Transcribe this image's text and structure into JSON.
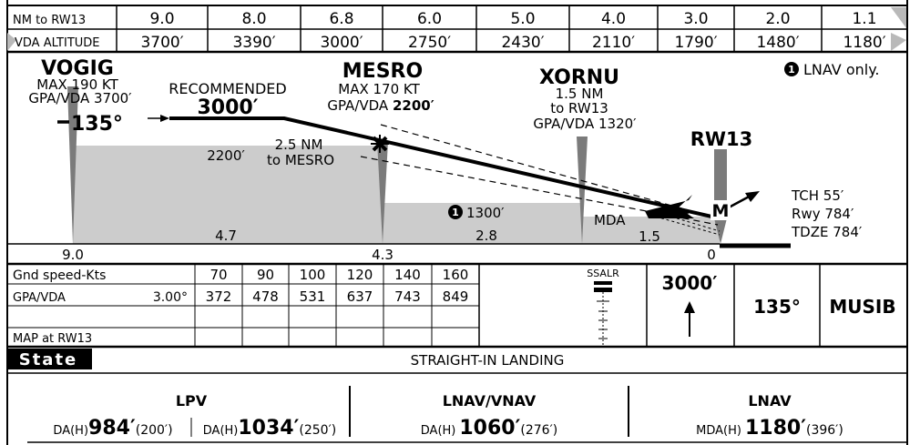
{
  "distance_table": {
    "row_label": "NM to RW13",
    "values": [
      "9.0",
      "8.0",
      "6.8",
      "6.0",
      "5.0",
      "4.0",
      "3.0",
      "2.0",
      "1.1"
    ]
  },
  "vda_table": {
    "row_label": "VDA ALTITUDE",
    "values": [
      "3700′",
      "3390′",
      "3000′",
      "2750′",
      "2430′",
      "2110′",
      "1790′",
      "1480′",
      "1180′"
    ]
  },
  "profile": {
    "fixes": {
      "vogig": {
        "name": "VOGIG",
        "lines": [
          "MAX 190 KT",
          "GPA/VDA 3700′"
        ]
      },
      "mesro": {
        "name": "MESRO",
        "line1": "MAX 170 KT",
        "line2_prefix": "GPA/VDA ",
        "line2_value": "2200′"
      },
      "xornu": {
        "name": "XORNU",
        "lines": [
          "1.5 NM",
          "to RW13",
          "GPA/VDA 1320′"
        ]
      }
    },
    "course": "135°",
    "recommended": {
      "label": "RECOMMENDED",
      "value": "3000′"
    },
    "minimum_altitude": "2200′",
    "segment_note": [
      "2.5 NM",
      "to MESRO"
    ],
    "step_altitude": "1300′",
    "note_badge": "1",
    "lnav_note": "LNAV only.",
    "mda_label": "MDA",
    "runway": {
      "name": "RW13",
      "map_symbol": "M",
      "info": [
        "TCH 55′",
        "Rwy 784′",
        "TDZE 784′"
      ]
    },
    "segment_distances": [
      "4.7",
      "2.8",
      "1.5"
    ],
    "axis_distances": [
      "9.0",
      "4.3",
      "0"
    ]
  },
  "speed_table": {
    "header_label": "Gnd speed-Kts",
    "speeds": [
      "70",
      "90",
      "100",
      "120",
      "140",
      "160"
    ],
    "gpa_label": "GPA/VDA",
    "gpa_angle": "3.00°",
    "rates": [
      "372",
      "478",
      "531",
      "637",
      "743",
      "849"
    ],
    "map_label": "MAP at RW13"
  },
  "missed_approach": {
    "lights_label": "SSALR",
    "climb_altitude": "3000′",
    "heading": "135°",
    "holding_fix": "MUSIB"
  },
  "minimums": {
    "state_label": "State",
    "landing_title": "STRAIGHT-IN LANDING",
    "lpv": {
      "title": "LPV",
      "entries": [
        {
          "prefix": "DA(H)",
          "value": "984′",
          "suffix": "(200′)"
        },
        {
          "prefix": "DA(H)",
          "value": "1034′",
          "suffix": "(250′)"
        }
      ]
    },
    "lnav_vnav": {
      "title": "LNAV/VNAV",
      "prefix": "DA(H)",
      "value": "1060′",
      "suffix": "(276′)"
    },
    "lnav": {
      "title": "LNAV",
      "prefix": "MDA(H)",
      "value": "1180′",
      "suffix": "(396′)"
    }
  }
}
